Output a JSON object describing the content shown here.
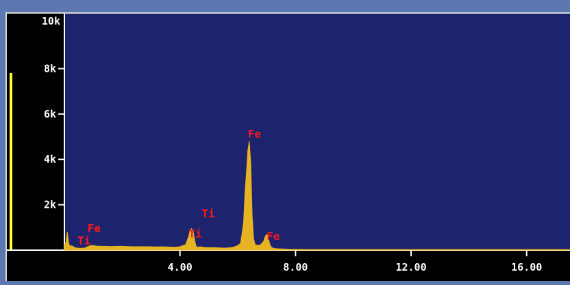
{
  "chart_data": {
    "type": "area",
    "title": "",
    "xlabel": "",
    "ylabel": "",
    "xlim": [
      0.0,
      17.5
    ],
    "ylim": [
      0,
      10000
    ],
    "x_ticks": [
      {
        "value": 4,
        "label": "4.00"
      },
      {
        "value": 8,
        "label": "8.00"
      },
      {
        "value": 12,
        "label": "12.00"
      },
      {
        "value": 16,
        "label": "16.00"
      }
    ],
    "y_ticks": [
      {
        "value": 2000,
        "label": "2k"
      },
      {
        "value": 4000,
        "label": "4k"
      },
      {
        "value": 6000,
        "label": "6k"
      },
      {
        "value": 8000,
        "label": "8k"
      },
      {
        "value": 10000,
        "label": "10k"
      }
    ],
    "series": [
      {
        "color": "#e6b422",
        "x": [
          0.0,
          0.05,
          0.1,
          0.15,
          0.2,
          0.25,
          0.3,
          0.35,
          0.4,
          0.45,
          0.5,
          0.6,
          0.7,
          0.8,
          0.9,
          1.0,
          1.1,
          1.2,
          1.4,
          1.6,
          1.8,
          2.0,
          2.2,
          2.4,
          2.6,
          2.8,
          3.0,
          3.2,
          3.4,
          3.6,
          3.8,
          4.0,
          4.2,
          4.3,
          4.35,
          4.4,
          4.45,
          4.5,
          4.55,
          4.6,
          4.7,
          4.8,
          4.9,
          5.0,
          5.2,
          5.4,
          5.6,
          5.8,
          5.9,
          6.0,
          6.1,
          6.2,
          6.25,
          6.3,
          6.35,
          6.4,
          6.45,
          6.5,
          6.55,
          6.6,
          6.7,
          6.8,
          6.9,
          6.95,
          7.0,
          7.05,
          7.1,
          7.15,
          7.2,
          7.3,
          7.4,
          7.6,
          7.8,
          8.0,
          8.5,
          9.0,
          9.5,
          10.0,
          10.5,
          11.0,
          12.0,
          13.0,
          14.0,
          15.0,
          16.0,
          17.0,
          17.5
        ],
        "values": [
          250,
          300,
          800,
          300,
          150,
          200,
          160,
          120,
          100,
          90,
          80,
          80,
          90,
          150,
          200,
          210,
          180,
          170,
          170,
          160,
          170,
          170,
          160,
          150,
          155,
          150,
          150,
          145,
          150,
          140,
          130,
          150,
          250,
          600,
          850,
          950,
          850,
          500,
          200,
          130,
          150,
          130,
          120,
          110,
          110,
          100,
          90,
          120,
          150,
          200,
          300,
          1200,
          2500,
          3400,
          4400,
          4800,
          3800,
          1500,
          500,
          250,
          200,
          250,
          400,
          600,
          700,
          600,
          300,
          150,
          100,
          70,
          60,
          50,
          40,
          40,
          30,
          30,
          30,
          30,
          30,
          30,
          30,
          30,
          30,
          30,
          30,
          30,
          30
        ]
      }
    ],
    "annotations": [
      {
        "text": "Ti",
        "x": 0.45,
        "y": 250
      },
      {
        "text": "Fe",
        "x": 0.8,
        "y": 800
      },
      {
        "text": "Ti",
        "x": 4.3,
        "y": 550
      },
      {
        "text": "Ti",
        "x": 4.75,
        "y": 1450
      },
      {
        "text": "Fe",
        "x": 6.35,
        "y": 4950
      },
      {
        "text": "Fe",
        "x": 7.0,
        "y": 450
      }
    ]
  },
  "side_meter": {
    "color": "#ffff33",
    "level": 0.78
  }
}
